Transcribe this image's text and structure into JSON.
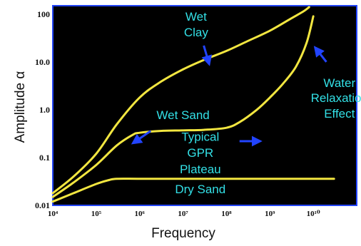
{
  "chart_data": {
    "type": "line",
    "xlabel": "Frequency",
    "ylabel": "Amplitude α",
    "x_scale": "log",
    "y_scale": "log",
    "xlim": [
      10000,
      100000000000
    ],
    "ylim": [
      0.01,
      150
    ],
    "grid": false,
    "x_ticks": [
      {
        "value": 10000,
        "label": "10⁴"
      },
      {
        "value": 100000,
        "label": "10⁵"
      },
      {
        "value": 1000000,
        "label": "10⁶"
      },
      {
        "value": 10000000,
        "label": "10⁷"
      },
      {
        "value": 100000000,
        "label": "10⁸"
      },
      {
        "value": 1000000000,
        "label": "10⁹"
      },
      {
        "value": 10000000000,
        "label": "10¹⁰"
      }
    ],
    "y_ticks": [
      {
        "value": 0.01,
        "label": "0.01"
      },
      {
        "value": 0.1,
        "label": "0.1"
      },
      {
        "value": 1,
        "label": "1.0"
      },
      {
        "value": 10,
        "label": "10.0"
      },
      {
        "value": 100,
        "label": "100"
      }
    ],
    "series": [
      {
        "color": "#f2e640",
        "x": [
          10000,
          30000,
          100000,
          300000,
          1000000,
          3000000,
          10000000,
          30000000,
          100000000,
          300000000,
          1000000000,
          3000000000,
          6000000000,
          8000000000
        ],
        "y": [
          0.018,
          0.04,
          0.12,
          0.5,
          1.8,
          3.8,
          7,
          11,
          17,
          27,
          45,
          80,
          115,
          140
        ]
      },
      {
        "color": "#f2e640",
        "x": [
          10000,
          30000,
          100000,
          300000,
          700000,
          1000000,
          3000000,
          10000000,
          30000000,
          100000000,
          200000000,
          500000000,
          1000000000,
          2000000000,
          4000000000,
          7000000000,
          10000000000
        ],
        "y": [
          0.015,
          0.03,
          0.07,
          0.18,
          0.3,
          0.33,
          0.36,
          0.37,
          0.38,
          0.42,
          0.55,
          1.0,
          1.8,
          3.5,
          8,
          25,
          90
        ]
      },
      {
        "color": "#f2e640",
        "x": [
          10000,
          30000,
          100000,
          200000,
          300000,
          1000000,
          10000000,
          100000000,
          1000000000,
          10000000000,
          30000000000
        ],
        "y": [
          0.012,
          0.018,
          0.028,
          0.034,
          0.036,
          0.036,
          0.036,
          0.036,
          0.036,
          0.036,
          0.036
        ]
      }
    ],
    "annotations": [
      {
        "text": "Wet",
        "x": 20000000,
        "y": 85
      },
      {
        "text": "Clay",
        "x": 20000000,
        "y": 40
      },
      {
        "text": "Wet Sand",
        "x": 10000000,
        "y": 0.75
      },
      {
        "text": "Typical",
        "x": 25000000,
        "y": 0.26
      },
      {
        "text": "GPR",
        "x": 25000000,
        "y": 0.12
      },
      {
        "text": "Plateau",
        "x": 25000000,
        "y": 0.055
      },
      {
        "text": "Dry Sand",
        "x": 25000000,
        "y": 0.021
      },
      {
        "text": "Water",
        "x": 40000000000,
        "y": 3.5
      },
      {
        "text": "Relaxation",
        "x": 40000000000,
        "y": 1.7
      },
      {
        "text": "Effect",
        "x": 40000000000,
        "y": 0.8
      }
    ],
    "arrows": [
      {
        "from": [
          30000000,
          22
        ],
        "to": [
          40000000,
          9
        ]
      },
      {
        "from": [
          1800000,
          0.36
        ],
        "to": [
          700000,
          0.2
        ]
      },
      {
        "from": [
          200000000,
          0.22
        ],
        "to": [
          600000000,
          0.22
        ]
      },
      {
        "from": [
          20000000000,
          10
        ],
        "to": [
          11000000000,
          20
        ]
      }
    ],
    "colors": {
      "background": "#000000",
      "frame": "#2244ff",
      "curve": "#f2e640",
      "annotation_text": "#33e0e6",
      "arrow": "#2244ff"
    }
  }
}
